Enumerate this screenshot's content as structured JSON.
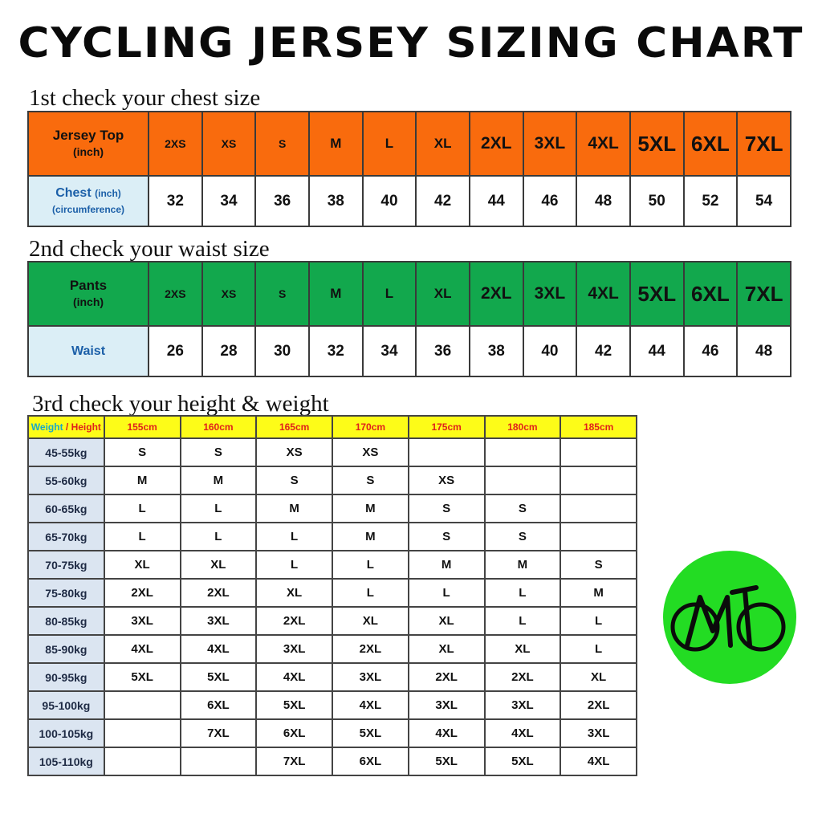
{
  "title": "CYCLING JERSEY SIZING CHART",
  "section1": {
    "heading": "1st check your chest size",
    "header_label": "Jersey Top",
    "header_sub": "(inch)",
    "sizes": [
      "2XS",
      "XS",
      "S",
      "M",
      "L",
      "XL",
      "2XL",
      "3XL",
      "4XL",
      "5XL",
      "6XL",
      "7XL"
    ],
    "value_label": "Chest",
    "value_label_unit": "(inch)",
    "value_label_sub": "(circumference)",
    "values": [
      "32",
      "34",
      "36",
      "38",
      "40",
      "42",
      "44",
      "46",
      "48",
      "50",
      "52",
      "54"
    ]
  },
  "section2": {
    "heading": "2nd check your waist size",
    "header_label": "Pants",
    "header_sub": "(inch)",
    "sizes": [
      "2XS",
      "XS",
      "S",
      "M",
      "L",
      "XL",
      "2XL",
      "3XL",
      "4XL",
      "5XL",
      "6XL",
      "7XL"
    ],
    "value_label": "Waist",
    "values": [
      "26",
      "28",
      "30",
      "32",
      "34",
      "36",
      "38",
      "40",
      "42",
      "44",
      "46",
      "48"
    ]
  },
  "section3": {
    "heading": "3rd check your height & weight",
    "corner_weight": "Weight",
    "corner_sep": " / ",
    "corner_height": "Height",
    "heights": [
      "155cm",
      "160cm",
      "165cm",
      "170cm",
      "175cm",
      "180cm",
      "185cm"
    ],
    "rows": [
      {
        "weight": "45-55kg",
        "sizes": [
          "S",
          "S",
          "XS",
          "XS",
          "",
          "",
          ""
        ]
      },
      {
        "weight": "55-60kg",
        "sizes": [
          "M",
          "M",
          "S",
          "S",
          "XS",
          "",
          ""
        ]
      },
      {
        "weight": "60-65kg",
        "sizes": [
          "L",
          "L",
          "M",
          "M",
          "S",
          "S",
          ""
        ]
      },
      {
        "weight": "65-70kg",
        "sizes": [
          "L",
          "L",
          "L",
          "M",
          "S",
          "S",
          ""
        ]
      },
      {
        "weight": "70-75kg",
        "sizes": [
          "XL",
          "XL",
          "L",
          "L",
          "M",
          "M",
          "S"
        ]
      },
      {
        "weight": "75-80kg",
        "sizes": [
          "2XL",
          "2XL",
          "XL",
          "L",
          "L",
          "L",
          "M"
        ]
      },
      {
        "weight": "80-85kg",
        "sizes": [
          "3XL",
          "3XL",
          "2XL",
          "XL",
          "XL",
          "L",
          "L"
        ]
      },
      {
        "weight": "85-90kg",
        "sizes": [
          "4XL",
          "4XL",
          "3XL",
          "2XL",
          "XL",
          "XL",
          "L"
        ]
      },
      {
        "weight": "90-95kg",
        "sizes": [
          "5XL",
          "5XL",
          "4XL",
          "3XL",
          "2XL",
          "2XL",
          "XL"
        ]
      },
      {
        "weight": "95-100kg",
        "sizes": [
          "",
          "6XL",
          "5XL",
          "4XL",
          "3XL",
          "3XL",
          "2XL"
        ]
      },
      {
        "weight": "100-105kg",
        "sizes": [
          "",
          "7XL",
          "6XL",
          "5XL",
          "4XL",
          "4XL",
          "3XL"
        ]
      },
      {
        "weight": "105-110kg",
        "sizes": [
          "",
          "",
          "7XL",
          "6XL",
          "5XL",
          "5XL",
          "4XL"
        ]
      }
    ]
  },
  "logo": {
    "text": "MT",
    "icon": "bicycle-logo-icon",
    "color": "#23dc23"
  },
  "colors": {
    "orange_header": "#f96b0d",
    "green_header": "#12a84d",
    "yellow_header": "#fdfc18",
    "label_cell": "#dbeef6",
    "weight_cell": "#dbe5f1"
  }
}
